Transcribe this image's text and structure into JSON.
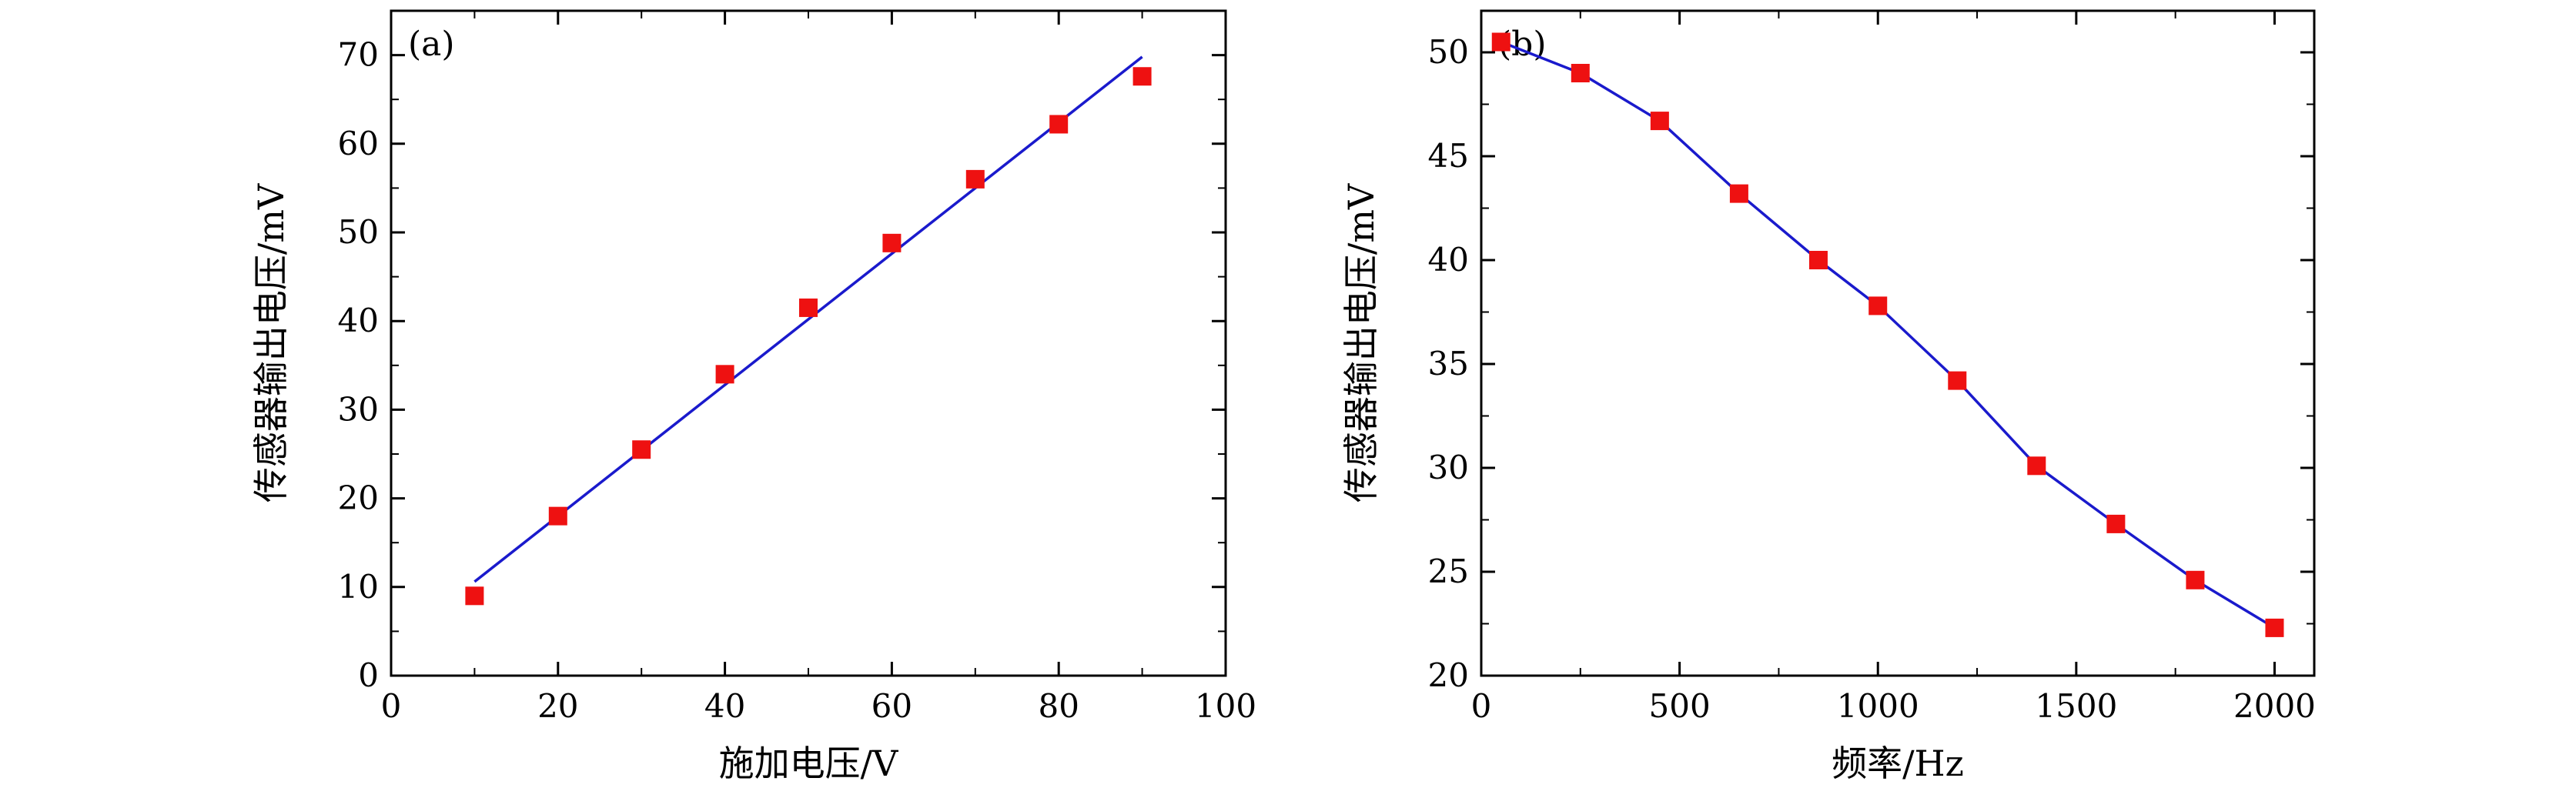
{
  "chart_data": [
    {
      "type": "scatter",
      "panel_label": "(a)",
      "xlabel": "施加电压/V",
      "ylabel": "传感器输出电压/mV",
      "xlim": [
        0,
        100
      ],
      "ylim": [
        0,
        75
      ],
      "x_ticks": [
        0,
        20,
        40,
        60,
        80,
        100
      ],
      "y_ticks": [
        0,
        10,
        20,
        30,
        40,
        50,
        60,
        70
      ],
      "series": [
        {
          "kind": "markers",
          "x": [
            10,
            20,
            30,
            40,
            50,
            60,
            70,
            80,
            90
          ],
          "y": [
            9.0,
            18.0,
            25.5,
            34.0,
            41.5,
            48.8,
            56.0,
            62.2,
            67.6
          ]
        },
        {
          "kind": "fit-line",
          "x": [
            10,
            90
          ],
          "y": [
            10.6,
            69.8
          ]
        }
      ],
      "colors": {
        "marker": "#ee1111",
        "line": "#1a1acc"
      },
      "grid": false
    },
    {
      "type": "line",
      "panel_label": "(b)",
      "xlabel": "频率/Hz",
      "ylabel": "传感器输出电压/mV",
      "xlim": [
        0,
        2100
      ],
      "ylim": [
        20,
        52
      ],
      "x_ticks": [
        0,
        500,
        1000,
        1500,
        2000
      ],
      "y_ticks": [
        20,
        25,
        30,
        35,
        40,
        45,
        50
      ],
      "series": [
        {
          "kind": "markers+line",
          "x": [
            50,
            250,
            450,
            650,
            850,
            1000,
            1200,
            1400,
            1600,
            1800,
            2000
          ],
          "y": [
            50.5,
            49.0,
            46.7,
            43.2,
            40.0,
            37.8,
            34.2,
            30.1,
            27.3,
            24.6,
            22.3
          ]
        }
      ],
      "colors": {
        "marker": "#ee1111",
        "line": "#1a1acc"
      },
      "grid": false
    }
  ]
}
